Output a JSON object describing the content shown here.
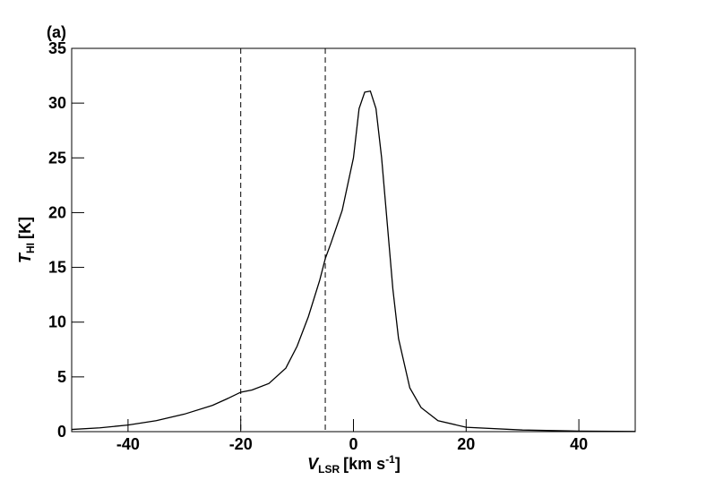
{
  "chart_data": {
    "type": "line",
    "annotation": "(a)",
    "x_label": {
      "var": "V",
      "sub": "LSR",
      "unit": "[km s",
      "sup": "-1",
      "close": "]"
    },
    "y_label": {
      "var": "T",
      "sub": "HI",
      "unit": "[K]"
    },
    "xlim": [
      -50,
      50
    ],
    "xticks": [
      -40,
      -20,
      0,
      20,
      40
    ],
    "ylim": [
      0,
      35
    ],
    "yticks": [
      0,
      5,
      10,
      15,
      20,
      25,
      30,
      35
    ],
    "vlines": [
      -20,
      -5
    ],
    "color": "#000000",
    "x": [
      -50,
      -45,
      -40,
      -35,
      -30,
      -25,
      -22,
      -20,
      -18,
      -15,
      -12,
      -10,
      -8,
      -6,
      -5,
      -4,
      -2,
      0,
      1,
      2,
      3,
      4,
      5,
      6,
      7,
      8,
      10,
      12,
      15,
      20,
      30,
      40,
      50
    ],
    "values": [
      0.2,
      0.35,
      0.6,
      1.0,
      1.6,
      2.4,
      3.1,
      3.6,
      3.8,
      4.4,
      5.8,
      7.8,
      10.5,
      13.8,
      15.8,
      17.2,
      20.2,
      25.0,
      29.5,
      31.0,
      31.1,
      29.5,
      25.0,
      19.0,
      13.0,
      8.5,
      4.0,
      2.2,
      1.0,
      0.4,
      0.15,
      0.05,
      0.02
    ]
  }
}
